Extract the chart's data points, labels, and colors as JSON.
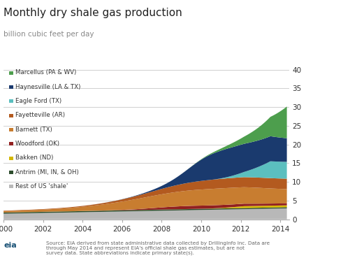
{
  "title": "Monthly dry shale gas production",
  "subtitle": "billion cubic feet per day",
  "source_text": "Source: EIA derived from state administrative data collected by DrillingInfo Inc. Data are\nthrough May 2014 and represent EIA's official shale gas estimates, but are not\nsurvey data. State abbreviations indicate primary state(s).",
  "ylim": [
    0,
    40
  ],
  "yticks": [
    0,
    5,
    10,
    15,
    20,
    25,
    30,
    35,
    40
  ],
  "xlabel_years": [
    2000,
    2002,
    2004,
    2006,
    2008,
    2010,
    2012,
    2014
  ],
  "series_order_legend": [
    {
      "label": "Marcellus (PA & WV)",
      "color": "#4d9e4d"
    },
    {
      "label": "Haynesville (LA & TX)",
      "color": "#1a3a6e"
    },
    {
      "label": "Eagle Ford (TX)",
      "color": "#5bbfbf"
    },
    {
      "label": "Fayetteville (AR)",
      "color": "#b35a1f"
    },
    {
      "label": "Barnett (TX)",
      "color": "#c87d30"
    },
    {
      "label": "Woodford (OK)",
      "color": "#922020"
    },
    {
      "label": "Bakken (ND)",
      "color": "#d4b800"
    },
    {
      "label": "Antrim (MI, IN, & OH)",
      "color": "#2d4d2d"
    },
    {
      "label": "Rest of US 'shale'",
      "color": "#b8b8b8"
    }
  ],
  "background_color": "#ffffff",
  "plot_bg_color": "#ffffff",
  "grid_color": "#d0d0d0"
}
